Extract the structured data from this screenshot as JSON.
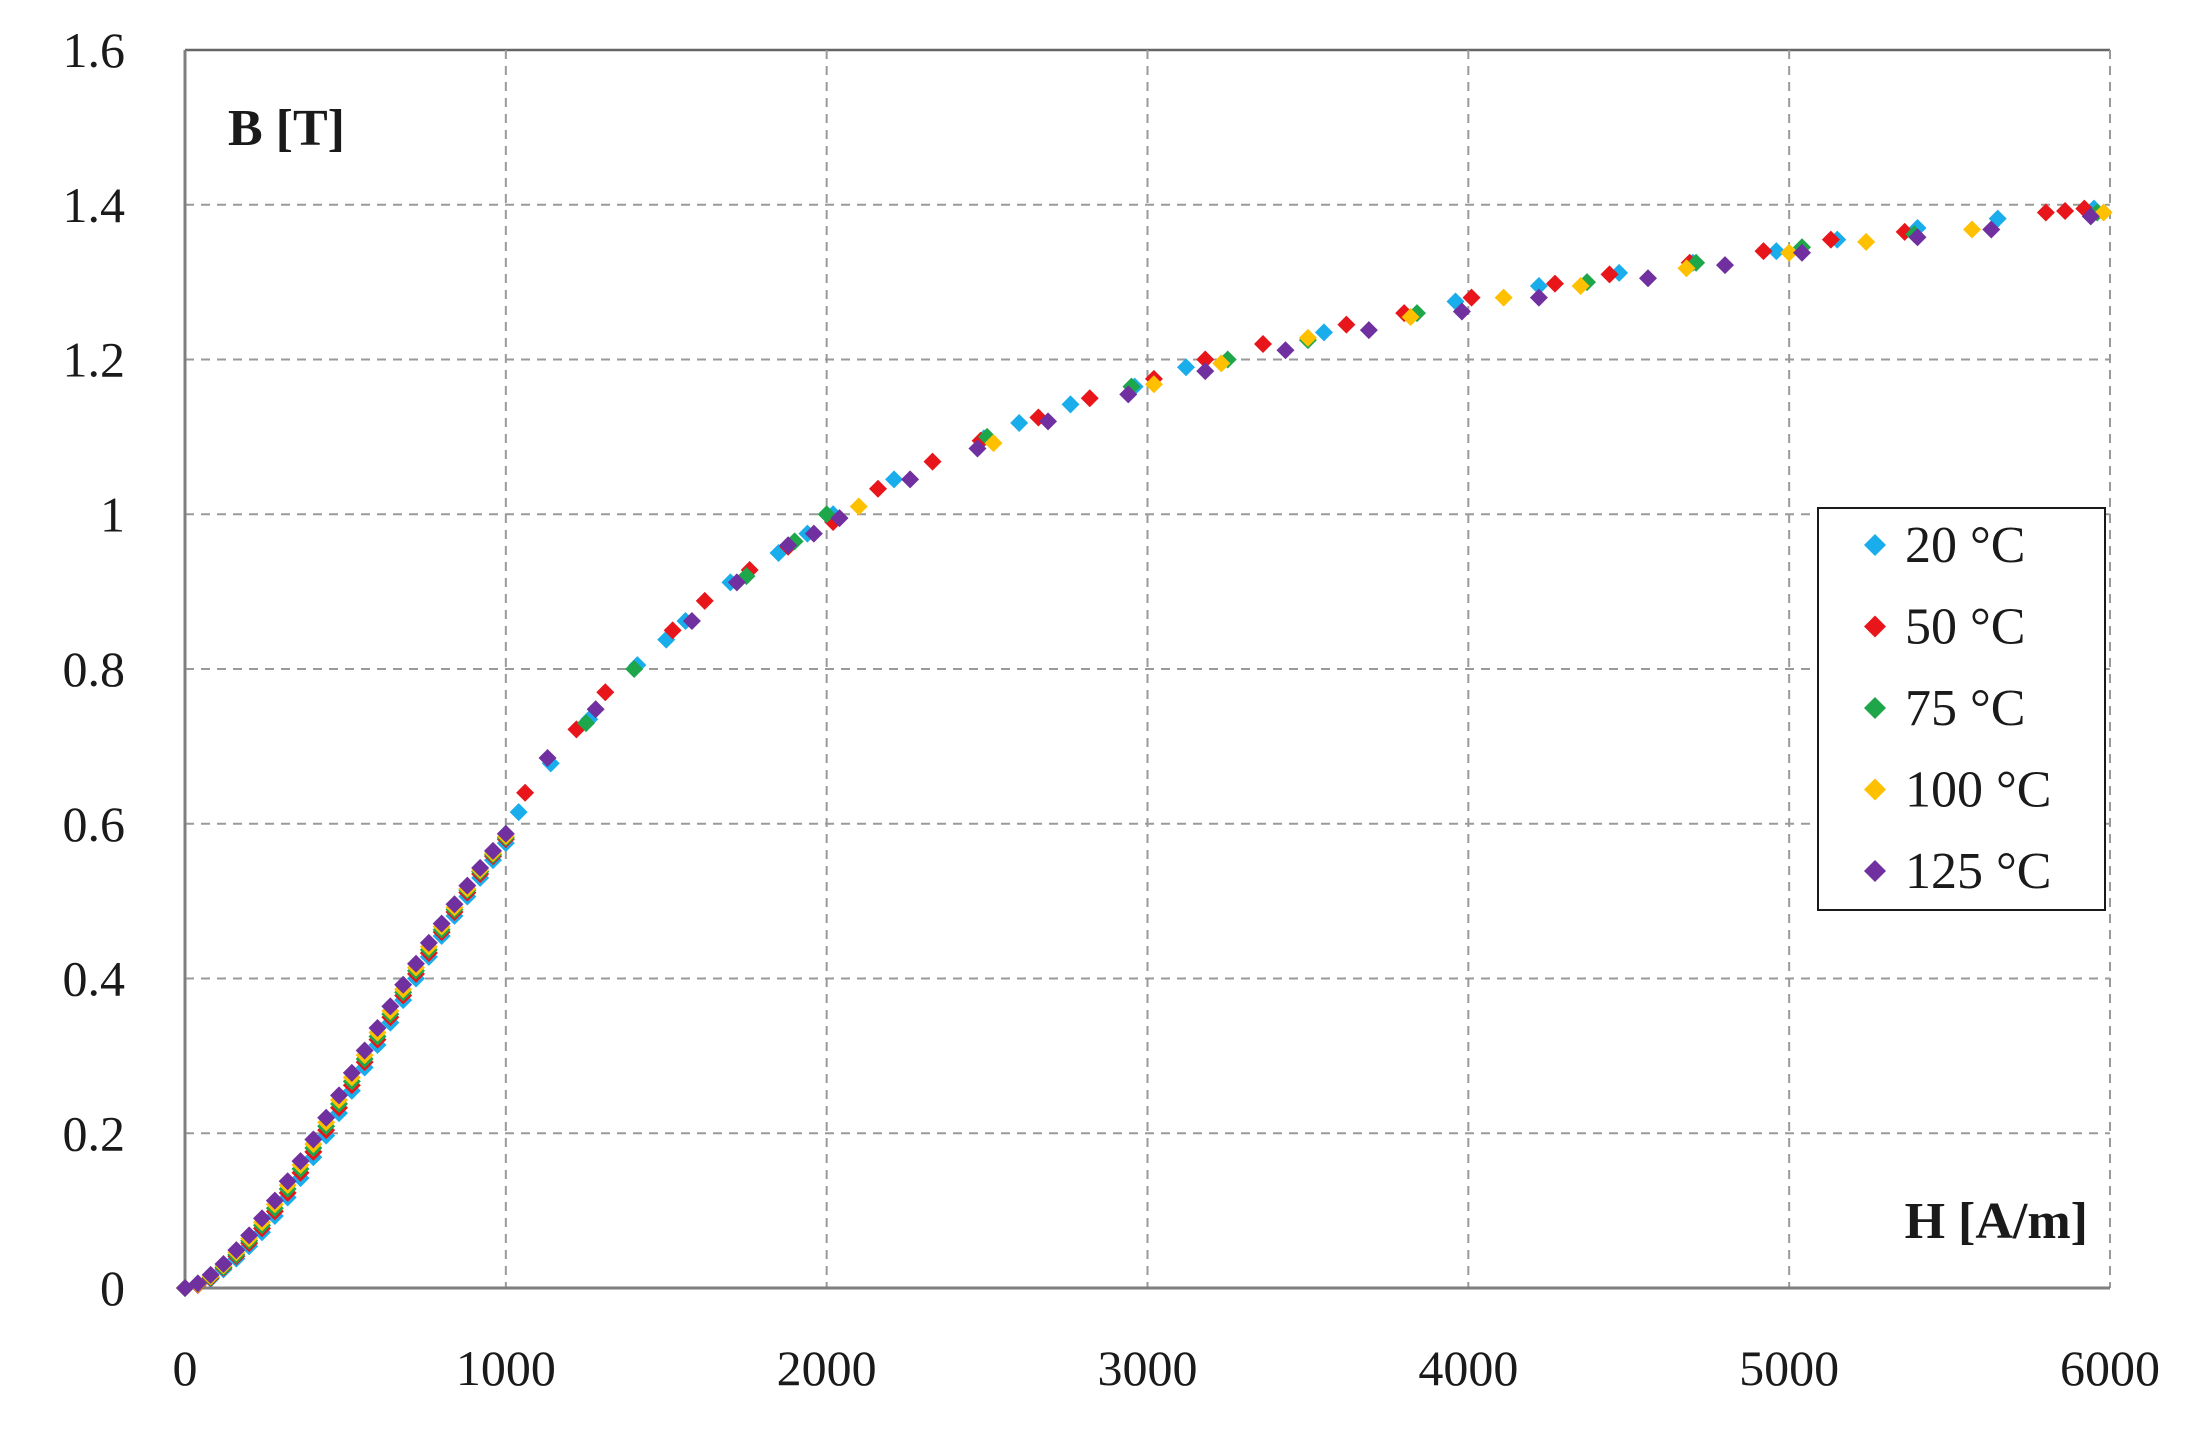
{
  "chart_data": {
    "type": "scatter",
    "title": "",
    "xlabel": "H [A/m]",
    "ylabel": "B [T]",
    "xlim": [
      0,
      6000
    ],
    "ylim": [
      0,
      1.6
    ],
    "x_ticks": [
      0,
      1000,
      2000,
      3000,
      4000,
      5000,
      6000
    ],
    "y_ticks": [
      0,
      0.2,
      0.4,
      0.6,
      0.8,
      1,
      1.2,
      1.4,
      1.6
    ],
    "grid": true,
    "legend_position": "right",
    "series": [
      {
        "name": "20 °C",
        "color": "#1AADEB",
        "points": [
          [
            0,
            0
          ],
          [
            40,
            0.004
          ],
          [
            80,
            0.012
          ],
          [
            120,
            0.024
          ],
          [
            160,
            0.038
          ],
          [
            200,
            0.054
          ],
          [
            240,
            0.072
          ],
          [
            280,
            0.093
          ],
          [
            320,
            0.117
          ],
          [
            360,
            0.142
          ],
          [
            400,
            0.169
          ],
          [
            440,
            0.197
          ],
          [
            480,
            0.226
          ],
          [
            520,
            0.255
          ],
          [
            560,
            0.285
          ],
          [
            600,
            0.314
          ],
          [
            640,
            0.343
          ],
          [
            680,
            0.372
          ],
          [
            720,
            0.4
          ],
          [
            760,
            0.428
          ],
          [
            800,
            0.455
          ],
          [
            840,
            0.481
          ],
          [
            880,
            0.506
          ],
          [
            920,
            0.53
          ],
          [
            960,
            0.553
          ],
          [
            1000,
            0.575
          ],
          [
            1040,
            0.615
          ],
          [
            1140,
            0.678
          ],
          [
            1260,
            0.735
          ],
          [
            1410,
            0.805
          ],
          [
            1500,
            0.838
          ],
          [
            1560,
            0.862
          ],
          [
            1700,
            0.912
          ],
          [
            1850,
            0.95
          ],
          [
            1940,
            0.975
          ],
          [
            2020,
            1.0
          ],
          [
            2210,
            1.045
          ],
          [
            2490,
            1.098
          ],
          [
            2600,
            1.118
          ],
          [
            2760,
            1.142
          ],
          [
            2960,
            1.165
          ],
          [
            3120,
            1.19
          ],
          [
            3550,
            1.235
          ],
          [
            3960,
            1.275
          ],
          [
            4220,
            1.295
          ],
          [
            4470,
            1.312
          ],
          [
            4700,
            1.325
          ],
          [
            4960,
            1.34
          ],
          [
            5150,
            1.355
          ],
          [
            5400,
            1.37
          ],
          [
            5650,
            1.382
          ],
          [
            5950,
            1.395
          ]
        ]
      },
      {
        "name": "50 °C",
        "color": "#E8161B",
        "points": [
          [
            0,
            0
          ],
          [
            40,
            0.004
          ],
          [
            80,
            0.013
          ],
          [
            120,
            0.026
          ],
          [
            160,
            0.041
          ],
          [
            200,
            0.058
          ],
          [
            240,
            0.077
          ],
          [
            280,
            0.099
          ],
          [
            320,
            0.123
          ],
          [
            360,
            0.149
          ],
          [
            400,
            0.176
          ],
          [
            440,
            0.204
          ],
          [
            480,
            0.233
          ],
          [
            520,
            0.262
          ],
          [
            560,
            0.292
          ],
          [
            600,
            0.321
          ],
          [
            640,
            0.35
          ],
          [
            680,
            0.378
          ],
          [
            720,
            0.406
          ],
          [
            760,
            0.433
          ],
          [
            800,
            0.46
          ],
          [
            840,
            0.486
          ],
          [
            880,
            0.511
          ],
          [
            920,
            0.535
          ],
          [
            960,
            0.558
          ],
          [
            1000,
            0.58
          ],
          [
            1060,
            0.64
          ],
          [
            1220,
            0.722
          ],
          [
            1310,
            0.77
          ],
          [
            1520,
            0.85
          ],
          [
            1620,
            0.888
          ],
          [
            1760,
            0.928
          ],
          [
            1880,
            0.958
          ],
          [
            2020,
            0.99
          ],
          [
            2160,
            1.033
          ],
          [
            2330,
            1.068
          ],
          [
            2480,
            1.095
          ],
          [
            2660,
            1.125
          ],
          [
            2820,
            1.15
          ],
          [
            3020,
            1.175
          ],
          [
            3180,
            1.2
          ],
          [
            3360,
            1.22
          ],
          [
            3620,
            1.245
          ],
          [
            3800,
            1.26
          ],
          [
            4010,
            1.28
          ],
          [
            4270,
            1.298
          ],
          [
            4440,
            1.31
          ],
          [
            4690,
            1.325
          ],
          [
            4920,
            1.34
          ],
          [
            5130,
            1.355
          ],
          [
            5360,
            1.365
          ],
          [
            5800,
            1.39
          ],
          [
            5860,
            1.392
          ],
          [
            5920,
            1.395
          ]
        ]
      },
      {
        "name": "75 °C",
        "color": "#1EA64B",
        "points": [
          [
            0,
            0
          ],
          [
            40,
            0.005
          ],
          [
            80,
            0.014
          ],
          [
            120,
            0.027
          ],
          [
            160,
            0.043
          ],
          [
            200,
            0.061
          ],
          [
            240,
            0.081
          ],
          [
            280,
            0.103
          ],
          [
            320,
            0.128
          ],
          [
            360,
            0.154
          ],
          [
            400,
            0.181
          ],
          [
            440,
            0.209
          ],
          [
            480,
            0.238
          ],
          [
            520,
            0.267
          ],
          [
            560,
            0.296
          ],
          [
            600,
            0.325
          ],
          [
            640,
            0.354
          ],
          [
            680,
            0.382
          ],
          [
            720,
            0.41
          ],
          [
            760,
            0.437
          ],
          [
            800,
            0.463
          ],
          [
            840,
            0.489
          ],
          [
            880,
            0.514
          ],
          [
            920,
            0.538
          ],
          [
            960,
            0.56
          ],
          [
            1000,
            0.582
          ],
          [
            1250,
            0.73
          ],
          [
            1400,
            0.8
          ],
          [
            1750,
            0.92
          ],
          [
            1900,
            0.965
          ],
          [
            2000,
            1.0
          ],
          [
            2500,
            1.1
          ],
          [
            2950,
            1.165
          ],
          [
            3250,
            1.2
          ],
          [
            3500,
            1.225
          ],
          [
            3840,
            1.26
          ],
          [
            4370,
            1.3
          ],
          [
            4710,
            1.325
          ],
          [
            5040,
            1.345
          ],
          [
            5390,
            1.362
          ],
          [
            5960,
            1.39
          ]
        ]
      },
      {
        "name": "100 °C",
        "color": "#FFC000",
        "points": [
          [
            0,
            0
          ],
          [
            40,
            0.005
          ],
          [
            80,
            0.015
          ],
          [
            120,
            0.029
          ],
          [
            160,
            0.046
          ],
          [
            200,
            0.064
          ],
          [
            240,
            0.085
          ],
          [
            280,
            0.108
          ],
          [
            320,
            0.133
          ],
          [
            360,
            0.159
          ],
          [
            400,
            0.186
          ],
          [
            440,
            0.214
          ],
          [
            480,
            0.243
          ],
          [
            520,
            0.272
          ],
          [
            560,
            0.301
          ],
          [
            600,
            0.33
          ],
          [
            640,
            0.358
          ],
          [
            680,
            0.386
          ],
          [
            720,
            0.414
          ],
          [
            760,
            0.441
          ],
          [
            800,
            0.467
          ],
          [
            840,
            0.492
          ],
          [
            880,
            0.516
          ],
          [
            920,
            0.54
          ],
          [
            960,
            0.562
          ],
          [
            1000,
            0.584
          ],
          [
            2100,
            1.01
          ],
          [
            2520,
            1.092
          ],
          [
            3020,
            1.168
          ],
          [
            3230,
            1.195
          ],
          [
            3500,
            1.228
          ],
          [
            3820,
            1.255
          ],
          [
            4110,
            1.28
          ],
          [
            4350,
            1.295
          ],
          [
            4680,
            1.318
          ],
          [
            5000,
            1.338
          ],
          [
            5240,
            1.352
          ],
          [
            5570,
            1.368
          ],
          [
            5980,
            1.39
          ]
        ]
      },
      {
        "name": "125 °C",
        "color": "#7030A0",
        "points": [
          [
            0,
            0
          ],
          [
            40,
            0.006
          ],
          [
            80,
            0.017
          ],
          [
            120,
            0.031
          ],
          [
            160,
            0.049
          ],
          [
            200,
            0.068
          ],
          [
            240,
            0.09
          ],
          [
            280,
            0.113
          ],
          [
            320,
            0.138
          ],
          [
            360,
            0.164
          ],
          [
            400,
            0.192
          ],
          [
            440,
            0.22
          ],
          [
            480,
            0.249
          ],
          [
            520,
            0.278
          ],
          [
            560,
            0.307
          ],
          [
            600,
            0.336
          ],
          [
            640,
            0.364
          ],
          [
            680,
            0.392
          ],
          [
            720,
            0.419
          ],
          [
            760,
            0.446
          ],
          [
            800,
            0.471
          ],
          [
            840,
            0.496
          ],
          [
            880,
            0.52
          ],
          [
            920,
            0.543
          ],
          [
            960,
            0.565
          ],
          [
            1000,
            0.587
          ],
          [
            1130,
            0.685
          ],
          [
            1280,
            0.748
          ],
          [
            1580,
            0.862
          ],
          [
            1720,
            0.912
          ],
          [
            1880,
            0.96
          ],
          [
            1960,
            0.975
          ],
          [
            2040,
            0.995
          ],
          [
            2260,
            1.045
          ],
          [
            2470,
            1.085
          ],
          [
            2690,
            1.12
          ],
          [
            2940,
            1.155
          ],
          [
            3180,
            1.185
          ],
          [
            3430,
            1.212
          ],
          [
            3690,
            1.238
          ],
          [
            3980,
            1.262
          ],
          [
            4220,
            1.28
          ],
          [
            4560,
            1.305
          ],
          [
            4800,
            1.322
          ],
          [
            5040,
            1.338
          ],
          [
            5400,
            1.358
          ],
          [
            5630,
            1.368
          ],
          [
            5940,
            1.385
          ]
        ]
      }
    ]
  }
}
